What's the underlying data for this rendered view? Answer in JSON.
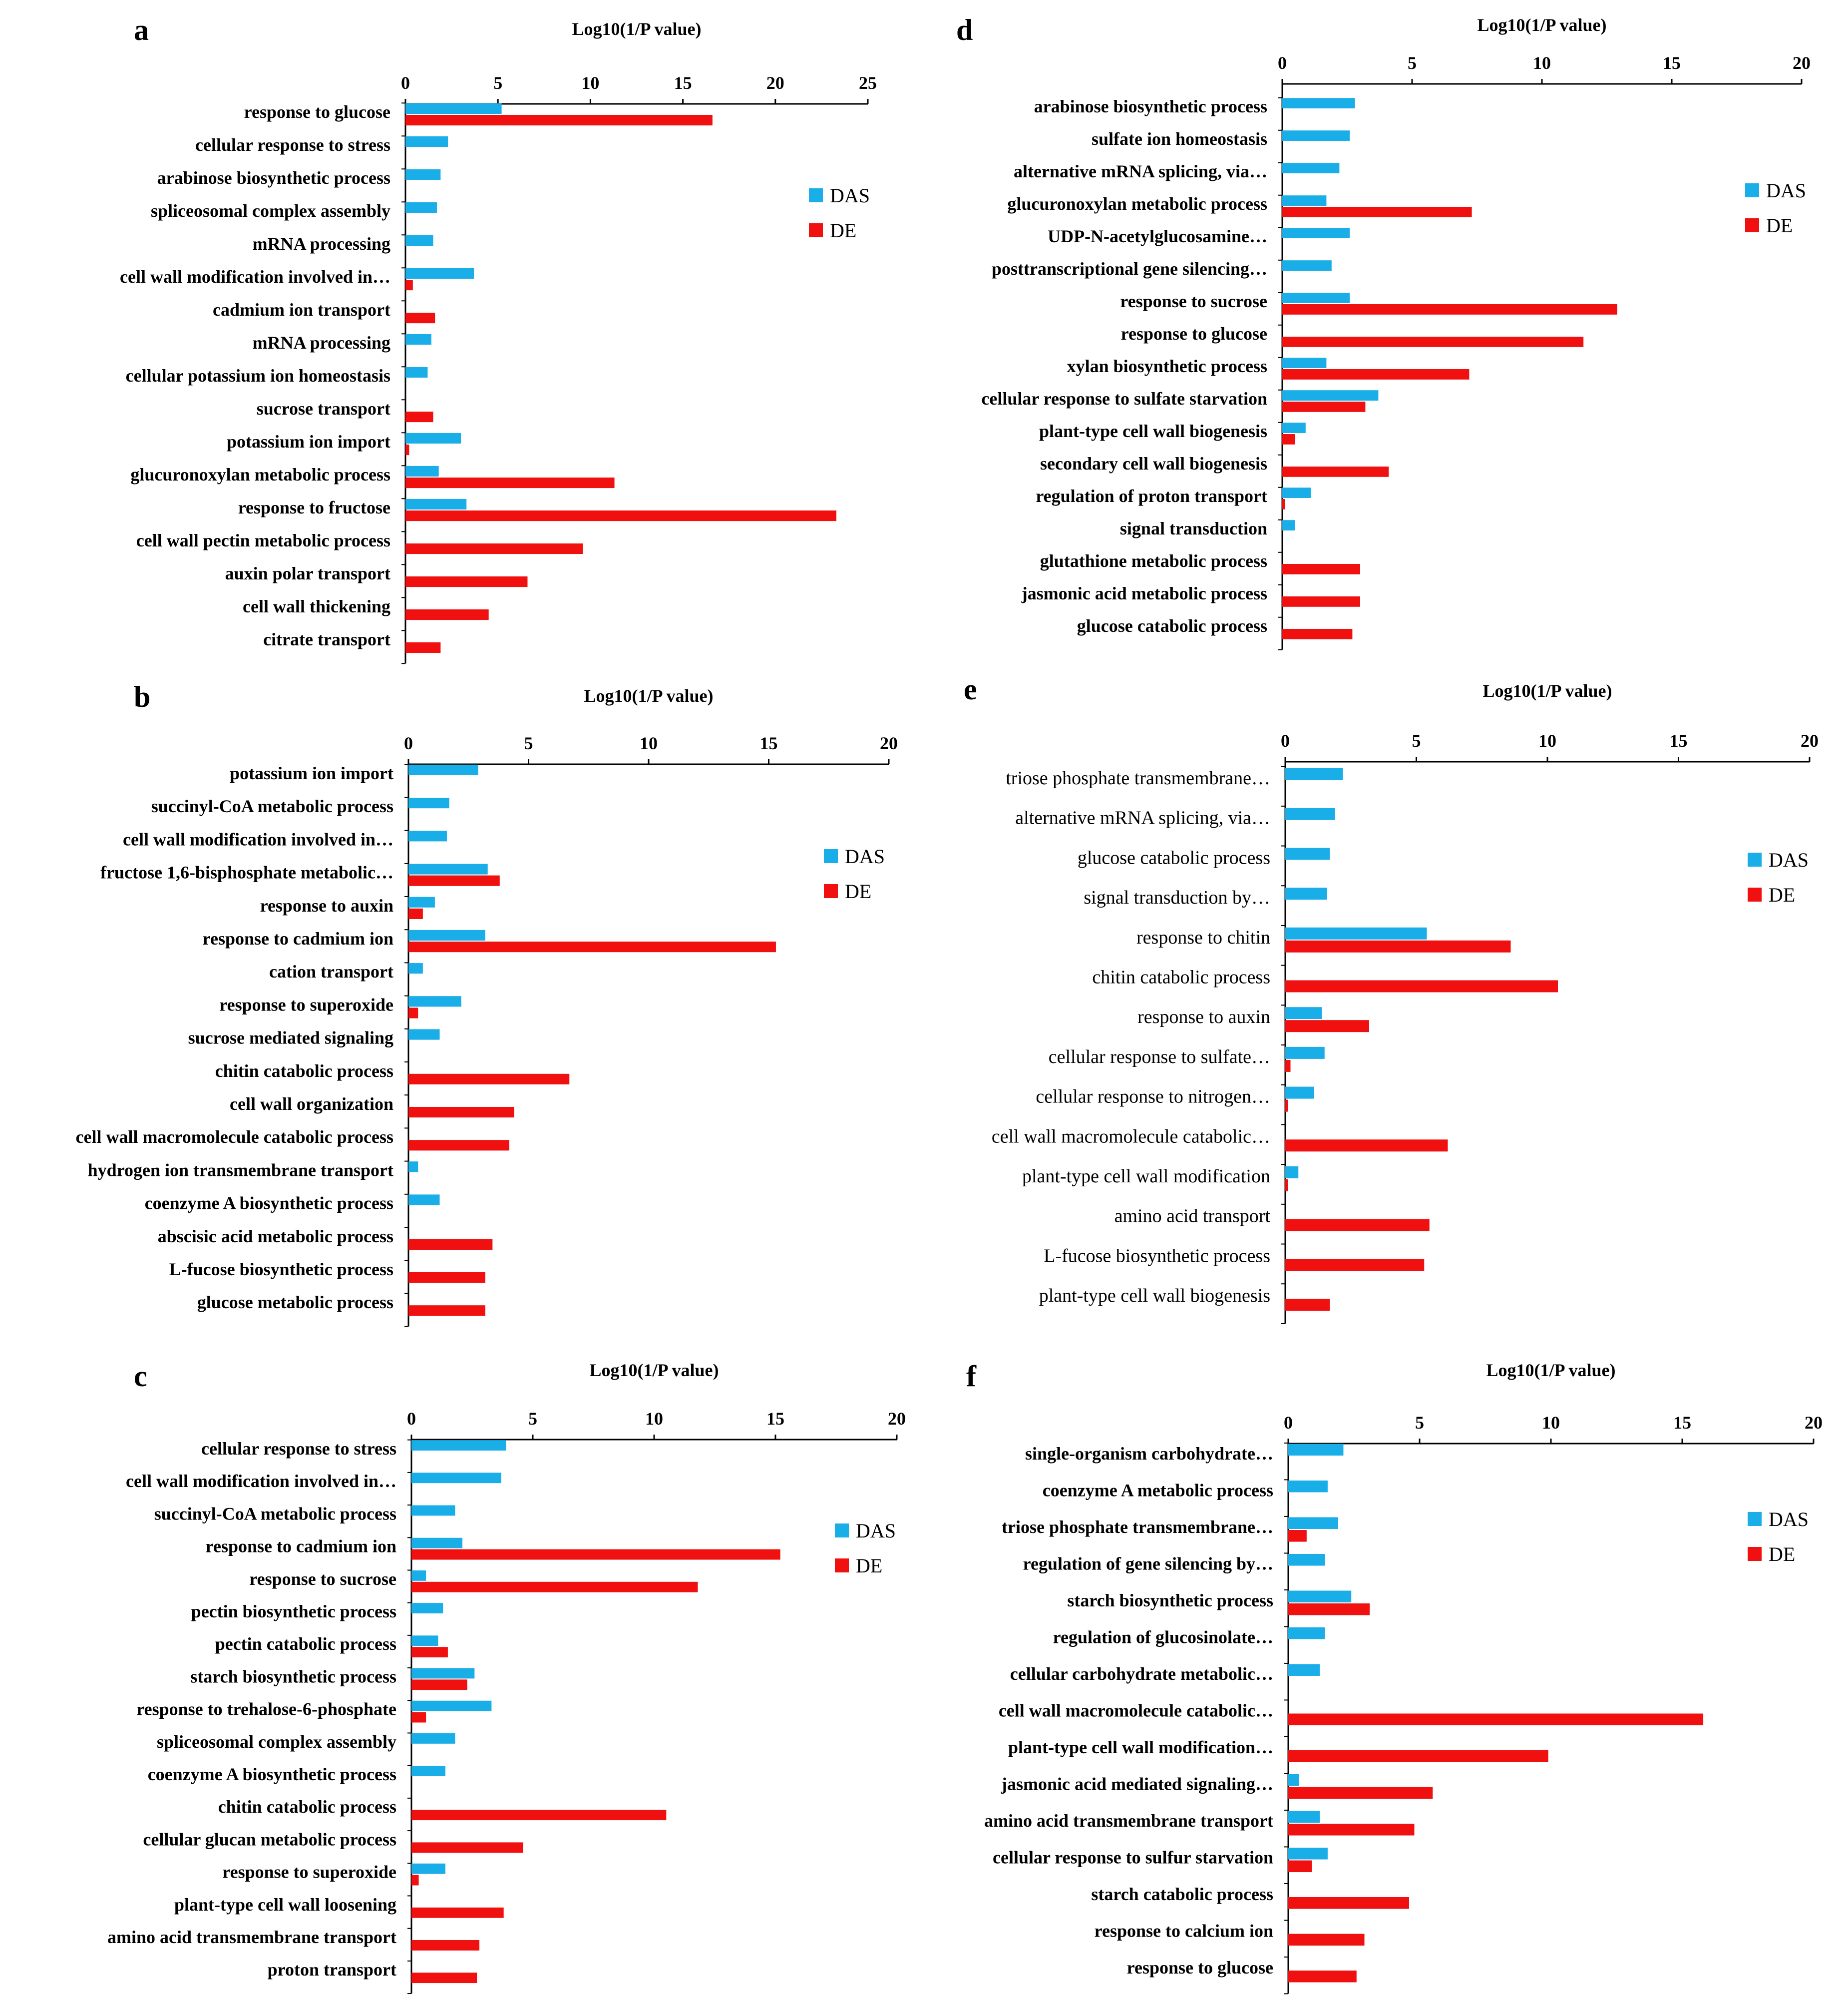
{
  "colors": {
    "DAS": "#1AAEE8",
    "DE": "#F01010",
    "axis": "#000000"
  },
  "legend": [
    "DAS",
    "DE"
  ],
  "chart_data": [
    {
      "panel": "a",
      "type": "bar",
      "orientation": "horizontal",
      "title": "Log10(1/P value)",
      "xlim": [
        0,
        25
      ],
      "ticks": [
        0,
        5,
        10,
        15,
        20,
        25
      ],
      "legend_position": "right",
      "categories": [
        "response to glucose",
        "cellular response to stress",
        "arabinose biosynthetic process",
        "spliceosomal complex assembly",
        "mRNA processing",
        "cell wall modification involved in…",
        "cadmium ion transport",
        "mRNA processing",
        "cellular potassium ion homeostasis",
        "sucrose transport",
        "potassium ion import",
        "glucuronoxylan metabolic process",
        "response to fructose",
        "cell wall pectin metabolic process",
        "auxin polar transport",
        "cell wall thickening",
        "citrate transport"
      ],
      "series": [
        {
          "name": "DAS",
          "values": [
            5.2,
            2.3,
            1.9,
            1.7,
            1.5,
            3.7,
            0,
            1.4,
            1.2,
            0,
            3.0,
            1.8,
            3.3,
            0,
            0,
            0,
            0
          ]
        },
        {
          "name": "DE",
          "values": [
            16.6,
            0,
            0,
            0,
            0,
            0.4,
            1.6,
            0,
            0,
            1.5,
            0.2,
            11.3,
            23.3,
            9.6,
            6.6,
            4.5,
            1.9
          ]
        }
      ]
    },
    {
      "panel": "b",
      "type": "bar",
      "orientation": "horizontal",
      "title": "Log10(1/P value)",
      "xlim": [
        0,
        20
      ],
      "ticks": [
        0,
        5,
        10,
        15,
        20
      ],
      "legend_position": "right",
      "categories": [
        "potassium ion import",
        "succinyl-CoA metabolic process",
        "cell wall modification involved in…",
        "fructose 1,6-bisphosphate metabolic…",
        "response to auxin",
        "response to cadmium ion",
        "cation transport",
        "response to superoxide",
        "sucrose mediated signaling",
        "chitin catabolic process",
        "cell wall organization",
        "cell wall macromolecule catabolic process",
        "hydrogen ion transmembrane transport",
        "coenzyme A biosynthetic process",
        "abscisic acid metabolic process",
        "L-fucose biosynthetic process",
        "glucose metabolic process"
      ],
      "series": [
        {
          "name": "DAS",
          "values": [
            2.9,
            1.7,
            1.6,
            3.3,
            1.1,
            3.2,
            0.6,
            2.2,
            1.3,
            0,
            0,
            0,
            0.4,
            1.3,
            0,
            0,
            0
          ]
        },
        {
          "name": "DE",
          "values": [
            0,
            0,
            0,
            3.8,
            0.6,
            15.3,
            0,
            0.4,
            0,
            6.7,
            4.4,
            4.2,
            0,
            0,
            3.5,
            3.2,
            3.2
          ]
        }
      ]
    },
    {
      "panel": "c",
      "type": "bar",
      "orientation": "horizontal",
      "title": "Log10(1/P value)",
      "xlim": [
        0,
        20
      ],
      "ticks": [
        0,
        5,
        10,
        15,
        20
      ],
      "legend_position": "right",
      "categories": [
        "cellular response to stress",
        "cell wall modification involved in…",
        "succinyl-CoA metabolic process",
        "response to cadmium ion",
        "response to sucrose",
        "pectin biosynthetic process",
        "pectin catabolic process",
        "starch biosynthetic process",
        "response to trehalose-6-phosphate",
        "spliceosomal complex assembly",
        "coenzyme A biosynthetic process",
        "chitin catabolic process",
        "cellular glucan metabolic process",
        "response to superoxide",
        "plant-type cell wall loosening",
        "amino acid transmembrane transport",
        "proton transport"
      ],
      "series": [
        {
          "name": "DAS",
          "values": [
            3.9,
            3.7,
            1.8,
            2.1,
            0.6,
            1.3,
            1.1,
            2.6,
            3.3,
            1.8,
            1.4,
            0,
            0,
            1.4,
            0,
            0,
            0
          ]
        },
        {
          "name": "DE",
          "values": [
            0,
            0,
            0,
            15.2,
            11.8,
            0,
            1.5,
            2.3,
            0.6,
            0,
            0,
            10.5,
            4.6,
            0.3,
            3.8,
            2.8,
            2.7
          ]
        }
      ]
    },
    {
      "panel": "d",
      "type": "bar",
      "orientation": "horizontal",
      "title": "Log10(1/P value)",
      "xlim": [
        0,
        20
      ],
      "ticks": [
        0,
        5,
        10,
        15,
        20
      ],
      "legend_position": "right",
      "categories": [
        "arabinose biosynthetic process",
        "sulfate ion homeostasis",
        "alternative mRNA splicing, via…",
        "glucuronoxylan metabolic process",
        "UDP-N-acetylglucosamine…",
        "posttranscriptional gene silencing…",
        "response to sucrose",
        "response to glucose",
        "xylan biosynthetic process",
        "cellular response to sulfate starvation",
        "plant-type cell wall biogenesis",
        "secondary cell wall biogenesis",
        "regulation of proton transport",
        "signal transduction",
        "glutathione metabolic process",
        "jasmonic acid metabolic process",
        "glucose catabolic process"
      ],
      "series": [
        {
          "name": "DAS",
          "values": [
            2.8,
            2.6,
            2.2,
            1.7,
            2.6,
            1.9,
            2.6,
            0,
            1.7,
            3.7,
            0.9,
            0,
            1.1,
            0.5,
            0,
            0,
            0
          ]
        },
        {
          "name": "DE",
          "values": [
            0,
            0,
            0,
            7.3,
            0,
            0,
            12.9,
            11.6,
            7.2,
            3.2,
            0.5,
            4.1,
            0.1,
            0,
            3.0,
            3.0,
            2.7
          ]
        }
      ]
    },
    {
      "panel": "e",
      "type": "bar",
      "orientation": "horizontal",
      "title": "Log10(1/P value)",
      "xlim": [
        0,
        20
      ],
      "ticks": [
        0,
        5,
        10,
        15,
        20
      ],
      "legend_position": "right",
      "categories": [
        "triose phosphate transmembrane…",
        "alternative mRNA splicing, via…",
        "glucose catabolic process",
        "signal transduction by…",
        "response to chitin",
        "chitin catabolic process",
        "response to auxin",
        "cellular response to sulfate…",
        "cellular response to nitrogen…",
        "cell wall macromolecule catabolic…",
        "plant-type cell wall modification",
        "amino acid transport",
        "L-fucose biosynthetic process",
        "plant-type cell wall biogenesis"
      ],
      "series": [
        {
          "name": "DAS",
          "values": [
            2.2,
            1.9,
            1.7,
            1.6,
            5.4,
            0,
            1.4,
            1.5,
            1.1,
            0,
            0.5,
            0,
            0,
            0
          ]
        },
        {
          "name": "DE",
          "values": [
            0,
            0,
            0,
            0,
            8.6,
            10.4,
            3.2,
            0.2,
            0.1,
            6.2,
            0.1,
            5.5,
            5.3,
            1.7
          ]
        }
      ]
    },
    {
      "panel": "f",
      "type": "bar",
      "orientation": "horizontal",
      "title": "Log10(1/P value)",
      "xlim": [
        0,
        20
      ],
      "ticks": [
        0,
        5,
        10,
        15,
        20
      ],
      "legend_position": "right",
      "categories": [
        "single-organism carbohydrate…",
        "coenzyme A metabolic process",
        "triose phosphate transmembrane…",
        "regulation of gene silencing by…",
        "starch biosynthetic process",
        "regulation of glucosinolate…",
        "cellular carbohydrate metabolic…",
        "cell wall macromolecule catabolic…",
        "plant-type cell wall modification…",
        "jasmonic acid mediated signaling…",
        "amino acid transmembrane transport",
        "cellular response to sulfur starvation",
        "starch catabolic process",
        "response to calcium ion",
        "response to glucose"
      ],
      "series": [
        {
          "name": "DAS",
          "values": [
            2.1,
            1.5,
            1.9,
            1.4,
            2.4,
            1.4,
            1.2,
            0,
            0,
            0.4,
            1.2,
            1.5,
            0,
            0,
            0
          ]
        },
        {
          "name": "DE",
          "values": [
            0,
            0,
            0.7,
            0,
            3.1,
            0,
            0,
            15.8,
            9.9,
            5.5,
            4.8,
            0.9,
            4.6,
            2.9,
            2.6
          ]
        }
      ]
    }
  ]
}
